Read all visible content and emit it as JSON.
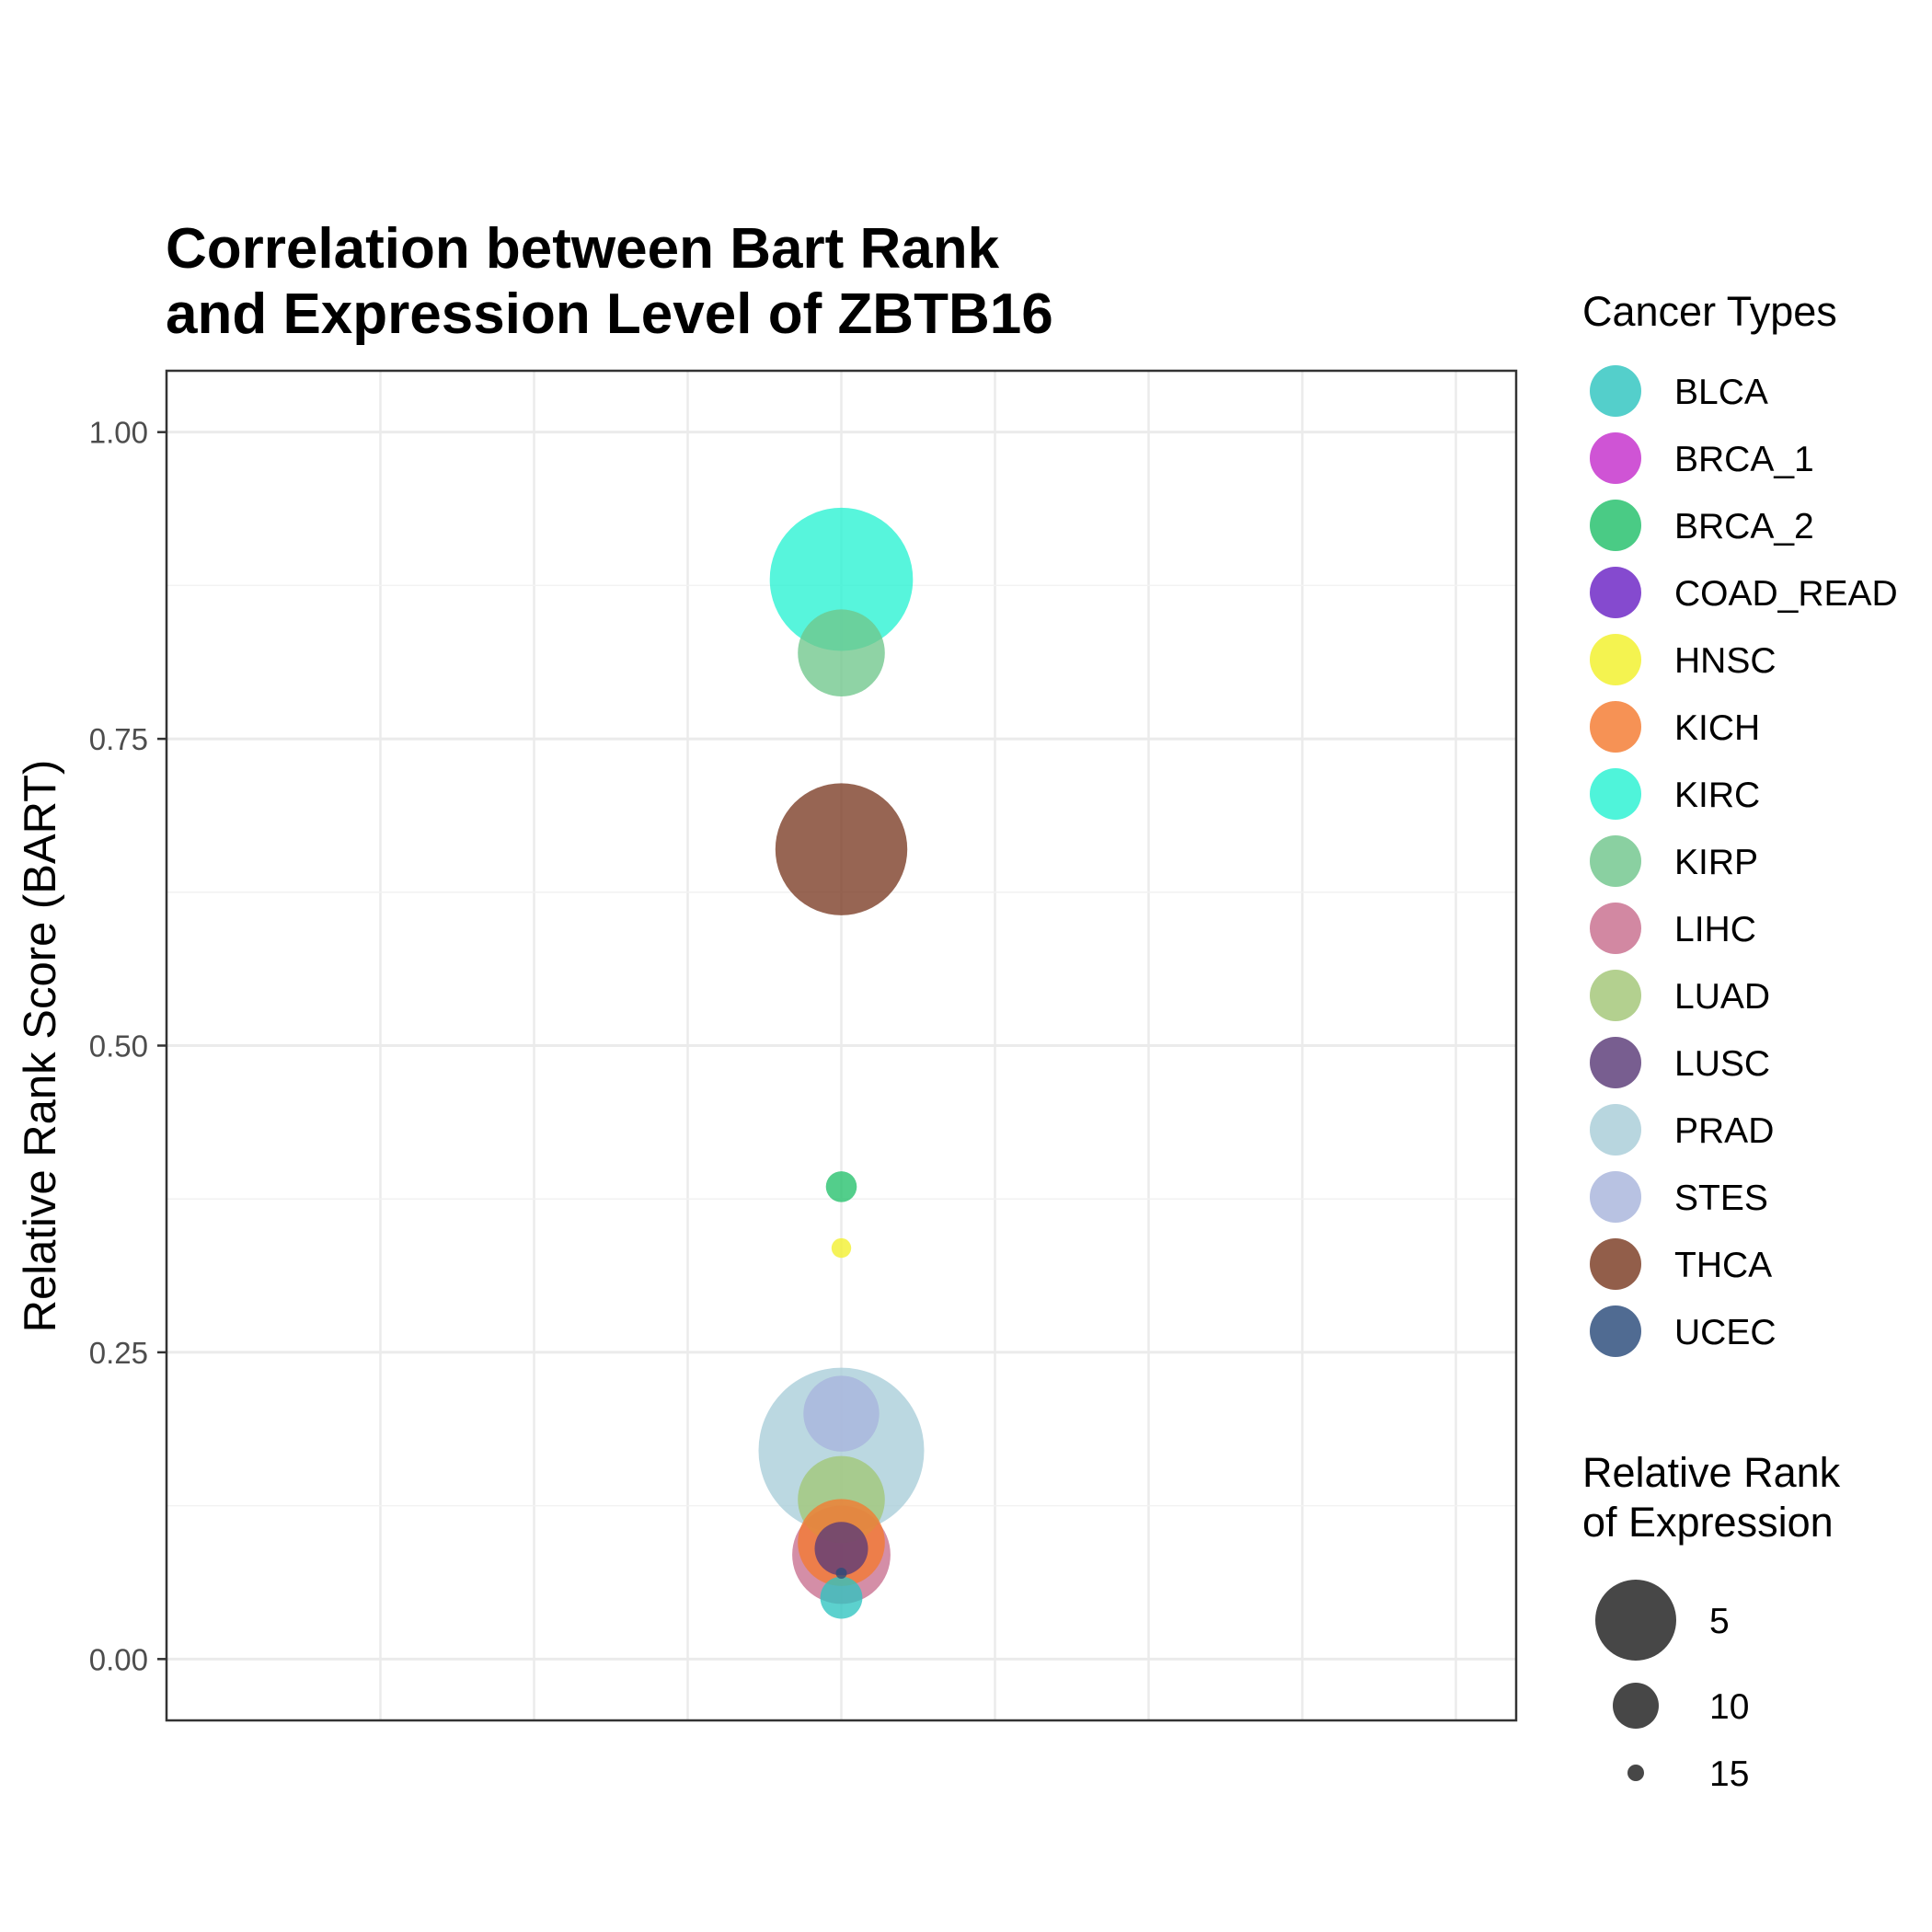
{
  "chart_data": {
    "type": "scatter",
    "title_lines": [
      "Correlation between Bart Rank",
      "and Expression Level of ZBTB16"
    ],
    "xlabel": "",
    "ylabel": "Relative Rank Score (BART)",
    "ylim": [
      -0.05,
      1.05
    ],
    "yticks": [
      0.0,
      0.25,
      0.5,
      0.75,
      1.0
    ],
    "ytick_labels": [
      "0.00",
      "0.25",
      "0.50",
      "0.75",
      "1.00"
    ],
    "grid": true,
    "color_legend": {
      "title": "Cancer Types",
      "placement": "right",
      "entries": [
        {
          "name": "BLCA",
          "color": "#2EC4C0"
        },
        {
          "name": "BRCA_1",
          "color": "#C42ECC"
        },
        {
          "name": "BRCA_2",
          "color": "#22C06A"
        },
        {
          "name": "COAD_READ",
          "color": "#6A22C4"
        },
        {
          "name": "HNSC",
          "color": "#F2F02A"
        },
        {
          "name": "KICH",
          "color": "#F47A30"
        },
        {
          "name": "KIRC",
          "color": "#28F2D2"
        },
        {
          "name": "KIRP",
          "color": "#70C68C"
        },
        {
          "name": "LIHC",
          "color": "#C86E8E"
        },
        {
          "name": "LUAD",
          "color": "#A2C676"
        },
        {
          "name": "LUSC",
          "color": "#5A3A78"
        },
        {
          "name": "PRAD",
          "color": "#A8CDD8"
        },
        {
          "name": "STES",
          "color": "#A8B4DC"
        },
        {
          "name": "THCA",
          "color": "#7A3A22"
        },
        {
          "name": "UCEC",
          "color": "#2A4A7A"
        }
      ]
    },
    "size_legend": {
      "title_lines": [
        "Relative Rank",
        "of Expression"
      ],
      "placement": "right",
      "entries": [
        {
          "label": "5",
          "value": 5
        },
        {
          "label": "10",
          "value": 10
        },
        {
          "label": "15",
          "value": 15
        }
      ]
    },
    "points": [
      {
        "type": "PRAD",
        "x": 0,
        "y": 0.17,
        "size_rank": 1
      },
      {
        "type": "KIRC",
        "x": 0,
        "y": 0.88,
        "size_rank": 3
      },
      {
        "type": "THCA",
        "x": 0,
        "y": 0.66,
        "size_rank": 4
      },
      {
        "type": "KIRP",
        "x": 0,
        "y": 0.82,
        "size_rank": 8
      },
      {
        "type": "LUAD",
        "x": 0,
        "y": 0.13,
        "size_rank": 8
      },
      {
        "type": "LIHC",
        "x": 0,
        "y": 0.085,
        "size_rank": 7
      },
      {
        "type": "KICH",
        "x": 0,
        "y": 0.095,
        "size_rank": 8
      },
      {
        "type": "STES",
        "x": 0,
        "y": 0.2,
        "size_rank": 9
      },
      {
        "type": "LUSC",
        "x": 0,
        "y": 0.09,
        "size_rank": 11
      },
      {
        "type": "BLCA",
        "x": 0,
        "y": 0.05,
        "size_rank": 12
      },
      {
        "type": "BRCA_2",
        "x": 0,
        "y": 0.385,
        "size_rank": 13
      },
      {
        "type": "HNSC",
        "x": 0,
        "y": 0.335,
        "size_rank": 14
      },
      {
        "type": "UCEC",
        "x": 0,
        "y": 0.07,
        "size_rank": 15
      }
    ]
  }
}
